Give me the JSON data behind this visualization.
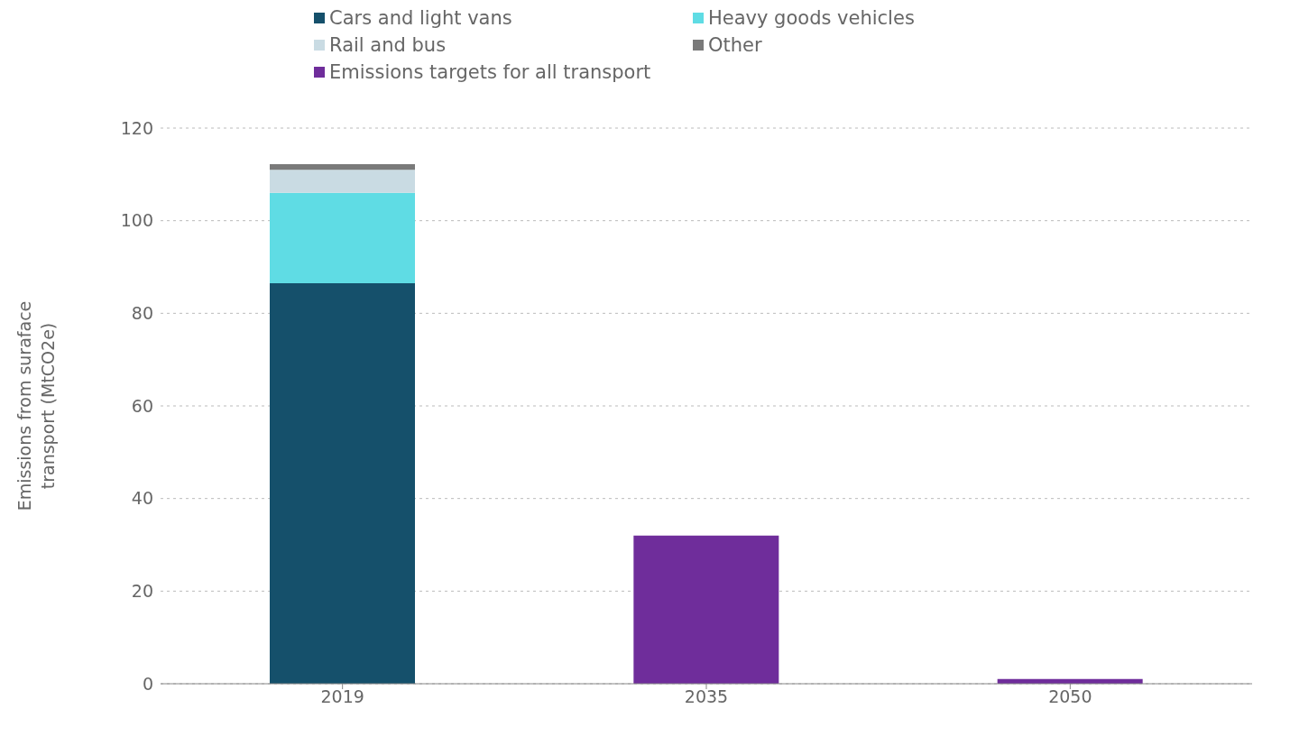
{
  "chart_data": {
    "type": "bar",
    "stacked": true,
    "categories": [
      "2019",
      "2035",
      "2050"
    ],
    "ylabel": "Emissions from suraface transport (MtCO2e)",
    "series": [
      {
        "name": "Cars and light vans",
        "color": "#15506b",
        "values": [
          86.5,
          null,
          null
        ]
      },
      {
        "name": "Heavy goods vehicles",
        "color": "#5fdce4",
        "values": [
          19.5,
          null,
          null
        ]
      },
      {
        "name": "Rail and bus",
        "color": "#c9dbe3",
        "values": [
          5,
          null,
          null
        ]
      },
      {
        "name": "Other",
        "color": "#7a7a7a",
        "values": [
          1.2,
          null,
          null
        ]
      },
      {
        "name": "Emissions targets for all transport",
        "color": "#6f2d9b",
        "values": [
          null,
          32,
          1
        ]
      }
    ],
    "ylim": [
      0,
      120
    ],
    "yticks": [
      0,
      20,
      40,
      60,
      80,
      100,
      120
    ],
    "grid": "y",
    "legend": "top"
  }
}
